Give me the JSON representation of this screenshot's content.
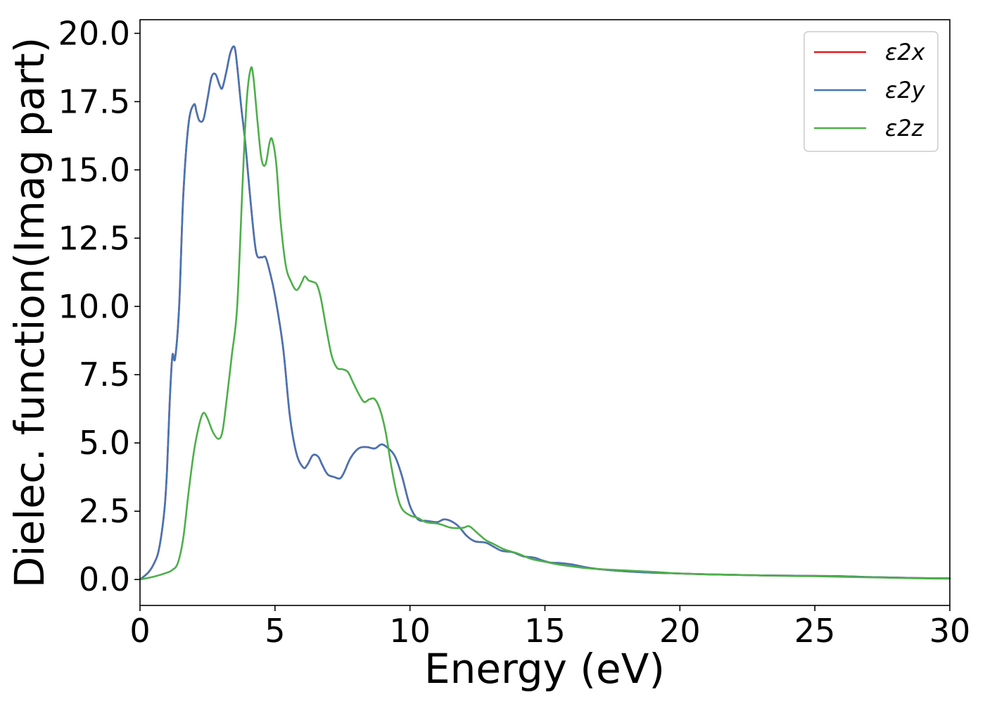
{
  "chart_data": {
    "type": "line",
    "title": "",
    "xlabel": "Energy (eV)",
    "ylabel": "Dielec. function(Imag part)",
    "xlim": [
      0,
      30
    ],
    "ylim": [
      -0.95,
      20.5
    ],
    "xticks": [
      0,
      5,
      10,
      15,
      20,
      25,
      30
    ],
    "xtick_labels": [
      "0",
      "5",
      "10",
      "15",
      "20",
      "25",
      "30"
    ],
    "yticks": [
      0,
      2.5,
      5,
      7.5,
      10,
      12.5,
      15,
      17.5,
      20
    ],
    "ytick_labels": [
      "0.0",
      "2.5",
      "5.0",
      "7.5",
      "10.0",
      "12.5",
      "15.0",
      "17.5",
      "20.0"
    ],
    "grid": false,
    "legend_position": "top-right",
    "series": [
      {
        "name": "ε2x",
        "color": "#e41a1c",
        "x": [
          0,
          0.3,
          0.5,
          0.7,
          0.9,
          1.0,
          1.1,
          1.2,
          1.3,
          1.45,
          1.6,
          1.8,
          2.0,
          2.1,
          2.2,
          2.35,
          2.5,
          2.65,
          2.8,
          2.95,
          3.05,
          3.2,
          3.35,
          3.5,
          3.6,
          3.75,
          3.9,
          4.1,
          4.3,
          4.5,
          4.65,
          4.8,
          5.0,
          5.3,
          5.55,
          5.8,
          6.05,
          6.2,
          6.4,
          6.6,
          6.75,
          6.95,
          7.2,
          7.4,
          7.55,
          7.8,
          8.1,
          8.4,
          8.7,
          8.95,
          9.2,
          9.45,
          9.7,
          10.0,
          10.3,
          10.6,
          11.0,
          11.25,
          11.5,
          11.8,
          12.1,
          12.4,
          12.8,
          13.1,
          13.4,
          13.8,
          14.2,
          14.6,
          14.9,
          15.2,
          15.6,
          16.0,
          16.5,
          17.0,
          18.0,
          19.0,
          20.0,
          21.0,
          22.0,
          23.0,
          24.0,
          25.0,
          26.0,
          27.0,
          28.0,
          29.0,
          30.0
        ],
        "values": [
          0.0,
          0.25,
          0.55,
          1.1,
          2.5,
          4.0,
          6.5,
          8.2,
          8.1,
          10.0,
          14.0,
          16.7,
          17.4,
          17.1,
          16.8,
          16.85,
          17.6,
          18.4,
          18.5,
          18.1,
          18.0,
          18.6,
          19.3,
          19.5,
          18.8,
          17.3,
          16.0,
          13.8,
          12.0,
          11.8,
          11.8,
          11.3,
          10.4,
          8.5,
          6.0,
          4.6,
          4.1,
          4.2,
          4.55,
          4.5,
          4.2,
          3.85,
          3.75,
          3.7,
          3.9,
          4.45,
          4.8,
          4.85,
          4.8,
          4.95,
          4.8,
          4.5,
          3.8,
          2.7,
          2.2,
          2.15,
          2.1,
          2.2,
          2.15,
          1.95,
          1.6,
          1.4,
          1.35,
          1.2,
          1.05,
          1.0,
          0.85,
          0.8,
          0.7,
          0.62,
          0.6,
          0.55,
          0.45,
          0.38,
          0.3,
          0.25,
          0.22,
          0.19,
          0.17,
          0.15,
          0.14,
          0.13,
          0.12,
          0.09,
          0.07,
          0.05,
          0.04
        ]
      },
      {
        "name": "ε2y",
        "color": "#4575b4",
        "x": [
          0,
          0.3,
          0.5,
          0.7,
          0.9,
          1.0,
          1.1,
          1.2,
          1.3,
          1.45,
          1.6,
          1.8,
          2.0,
          2.1,
          2.2,
          2.35,
          2.5,
          2.65,
          2.8,
          2.95,
          3.05,
          3.2,
          3.35,
          3.5,
          3.6,
          3.75,
          3.9,
          4.1,
          4.3,
          4.5,
          4.65,
          4.8,
          5.0,
          5.3,
          5.55,
          5.8,
          6.05,
          6.2,
          6.4,
          6.6,
          6.75,
          6.95,
          7.2,
          7.4,
          7.55,
          7.8,
          8.1,
          8.4,
          8.7,
          8.95,
          9.2,
          9.45,
          9.7,
          10.0,
          10.3,
          10.6,
          11.0,
          11.25,
          11.5,
          11.8,
          12.1,
          12.4,
          12.8,
          13.1,
          13.4,
          13.8,
          14.2,
          14.6,
          14.9,
          15.2,
          15.6,
          16.0,
          16.5,
          17.0,
          18.0,
          19.0,
          20.0,
          21.0,
          22.0,
          23.0,
          24.0,
          25.0,
          26.0,
          27.0,
          28.0,
          29.0,
          30.0
        ],
        "values": [
          0.0,
          0.25,
          0.55,
          1.1,
          2.5,
          4.0,
          6.5,
          8.2,
          8.1,
          10.0,
          14.0,
          16.7,
          17.4,
          17.1,
          16.8,
          16.85,
          17.6,
          18.4,
          18.5,
          18.1,
          18.0,
          18.6,
          19.3,
          19.5,
          18.8,
          17.3,
          16.0,
          13.8,
          12.0,
          11.8,
          11.8,
          11.3,
          10.4,
          8.5,
          6.0,
          4.6,
          4.1,
          4.2,
          4.55,
          4.5,
          4.2,
          3.85,
          3.75,
          3.7,
          3.9,
          4.45,
          4.8,
          4.85,
          4.8,
          4.95,
          4.8,
          4.5,
          3.8,
          2.7,
          2.2,
          2.15,
          2.1,
          2.2,
          2.15,
          1.95,
          1.6,
          1.4,
          1.35,
          1.2,
          1.05,
          1.0,
          0.85,
          0.8,
          0.7,
          0.62,
          0.6,
          0.55,
          0.45,
          0.38,
          0.3,
          0.25,
          0.22,
          0.19,
          0.17,
          0.15,
          0.14,
          0.13,
          0.12,
          0.09,
          0.07,
          0.05,
          0.04
        ]
      },
      {
        "name": "ε2z",
        "color": "#4daf4a",
        "x": [
          0,
          0.5,
          1.0,
          1.2,
          1.4,
          1.6,
          1.8,
          2.0,
          2.2,
          2.35,
          2.5,
          2.7,
          2.9,
          3.05,
          3.2,
          3.4,
          3.6,
          3.8,
          3.95,
          4.1,
          4.2,
          4.35,
          4.5,
          4.65,
          4.8,
          4.9,
          5.05,
          5.2,
          5.4,
          5.6,
          5.8,
          6.0,
          6.1,
          6.25,
          6.4,
          6.55,
          6.7,
          6.9,
          7.1,
          7.3,
          7.5,
          7.7,
          7.9,
          8.1,
          8.3,
          8.5,
          8.7,
          8.9,
          9.1,
          9.3,
          9.5,
          9.7,
          10.0,
          10.3,
          10.6,
          11.0,
          11.2,
          11.5,
          11.8,
          12.0,
          12.2,
          12.5,
          12.8,
          13.1,
          13.5,
          14.0,
          14.5,
          15.0,
          15.5,
          16.0,
          16.5,
          17.0,
          18.0,
          19.0,
          20.0,
          21.0,
          22.0,
          23.0,
          24.0,
          25.0,
          26.0,
          27.0,
          28.0,
          29.0,
          30.0
        ],
        "values": [
          0.0,
          0.1,
          0.25,
          0.35,
          0.6,
          1.5,
          3.2,
          4.7,
          5.7,
          6.1,
          5.9,
          5.4,
          5.15,
          5.4,
          6.5,
          8.2,
          10.0,
          14.5,
          17.5,
          18.7,
          18.4,
          16.8,
          15.4,
          15.2,
          16.0,
          16.1,
          15.2,
          13.2,
          11.5,
          10.9,
          10.6,
          10.9,
          11.1,
          10.95,
          10.9,
          10.8,
          10.3,
          9.2,
          8.2,
          7.75,
          7.7,
          7.6,
          7.2,
          6.8,
          6.5,
          6.6,
          6.6,
          6.2,
          5.4,
          4.2,
          3.2,
          2.6,
          2.35,
          2.25,
          2.1,
          2.05,
          2.0,
          1.9,
          1.88,
          1.9,
          1.95,
          1.7,
          1.45,
          1.3,
          1.1,
          0.95,
          0.75,
          0.65,
          0.55,
          0.48,
          0.42,
          0.38,
          0.33,
          0.28,
          0.22,
          0.19,
          0.17,
          0.15,
          0.13,
          0.12,
          0.1,
          0.08,
          0.06,
          0.04,
          0.03
        ]
      }
    ]
  }
}
